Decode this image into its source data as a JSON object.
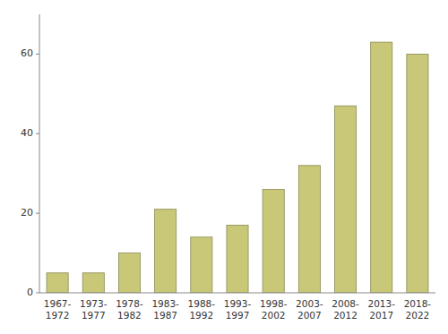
{
  "chart_data": {
    "type": "bar",
    "categories": [
      "1967-\n1972",
      "1973-\n1977",
      "1978-\n1982",
      "1983-\n1987",
      "1988-\n1992",
      "1993-\n1997",
      "1998-\n2002",
      "2003-\n2007",
      "2008-\n2012",
      "2013-\n2017",
      "2018-\n2022"
    ],
    "values": [
      5,
      5,
      10,
      21,
      14,
      17,
      26,
      32,
      47,
      63,
      60
    ],
    "color": "#C8C878",
    "ylim": [
      0,
      70
    ],
    "yticks": [
      0,
      20,
      40,
      60
    ],
    "grid": false
  }
}
